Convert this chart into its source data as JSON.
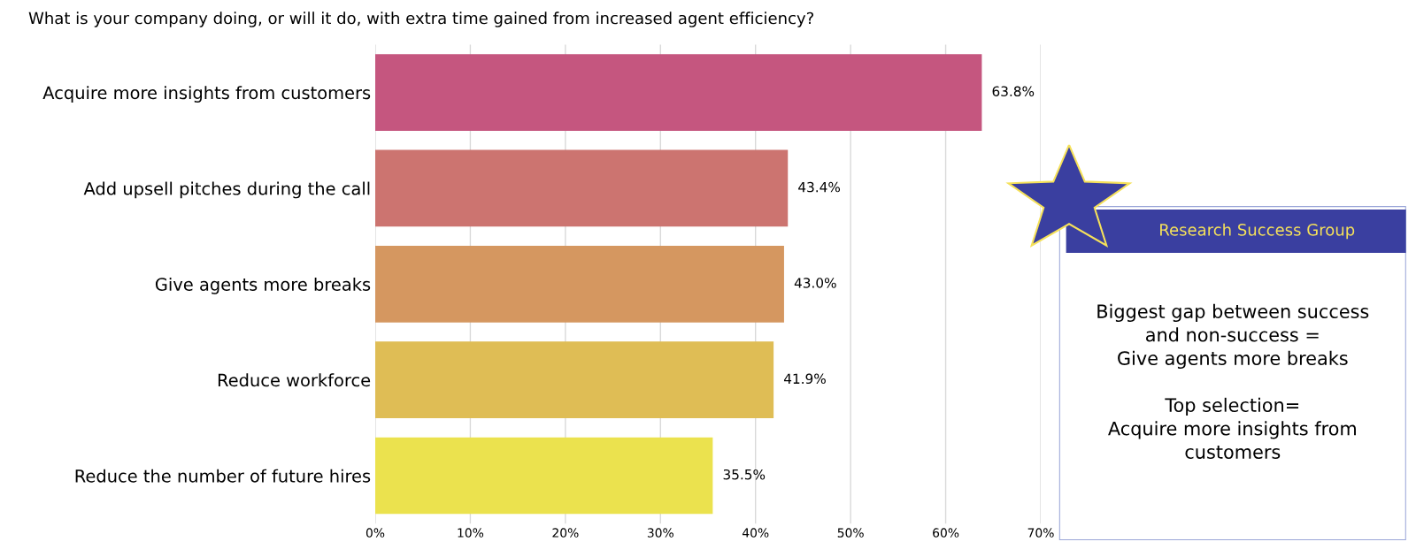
{
  "chart_data": {
    "type": "bar",
    "orientation": "horizontal",
    "title": "What is your company doing, or will it do, with extra time gained from increased agent efficiency?",
    "categories": [
      "Acquire more insights from customers",
      "Add upsell pitches during the call",
      "Give agents more breaks",
      "Reduce workforce",
      "Reduce the number of future hires"
    ],
    "values": [
      63.8,
      43.4,
      43.0,
      41.9,
      35.5
    ],
    "colors": [
      "#c5567f",
      "#cc7470",
      "#d59760",
      "#dfbd55",
      "#ebe24e"
    ],
    "value_labels": [
      "63.8%",
      "43.4%",
      "43.0%",
      "41.9%",
      "35.5%"
    ],
    "xlim": [
      0,
      70
    ],
    "xticks": [
      {
        "value": 0,
        "label": "0%"
      },
      {
        "value": 10,
        "label": "10%"
      },
      {
        "value": 20,
        "label": "20%"
      },
      {
        "value": 30,
        "label": "30%"
      },
      {
        "value": 40,
        "label": "40%"
      },
      {
        "value": 50,
        "label": "50%"
      },
      {
        "value": 60,
        "label": "60%"
      },
      {
        "value": 70,
        "label": "70%"
      }
    ],
    "grid": "x",
    "annotations": [
      "Research Success Group",
      "Biggest gap between success\nand non-success =\nGive agents more breaks\n\nTop selection=\nAcquire more insights from\ncustomers"
    ]
  }
}
